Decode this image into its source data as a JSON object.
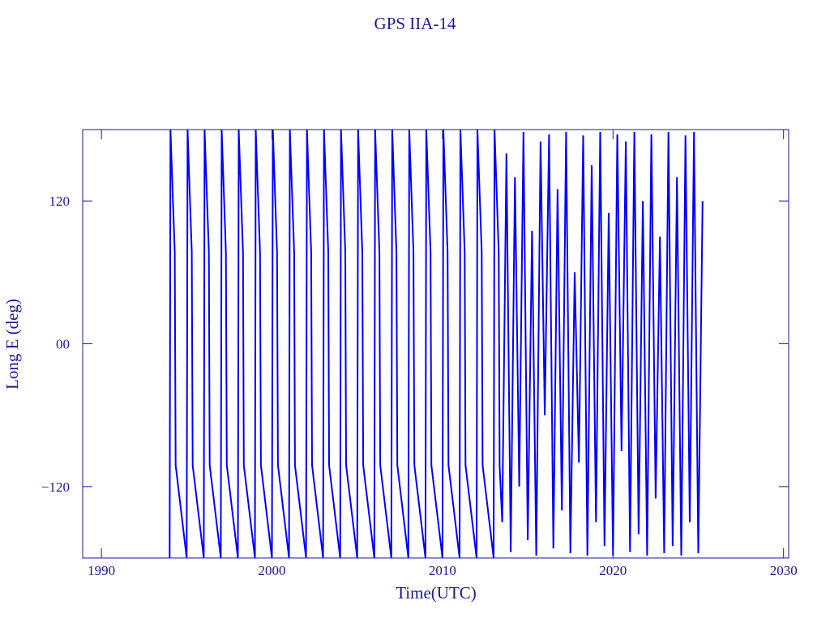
{
  "chart_data": {
    "type": "line",
    "title": "GPS IIA-14",
    "x_label": "Time(UTC)",
    "y_label": "Long E (deg)",
    "xlim": [
      1988.9,
      2030.3
    ],
    "ylim": [
      -180,
      180
    ],
    "xticks": [
      1990,
      2000,
      2010,
      2020,
      2030
    ],
    "yticks": [
      {
        "value": -120,
        "label": "−120"
      },
      {
        "value": 0,
        "label": "00"
      },
      120
    ],
    "series": [
      {
        "color": "#0000ff",
        "x": [
          1994,
          1994.05,
          1994.3,
          1994.35,
          1995,
          1995.05,
          1995.3,
          1995.35,
          1996,
          1996.05,
          1996.3,
          1996.35,
          1997,
          1997.05,
          1997.3,
          1997.35,
          1998,
          1998.05,
          1998.3,
          1998.35,
          1999,
          1999.05,
          1999.3,
          1999.35,
          2000,
          2000.05,
          2000.3,
          2000.35,
          2001,
          2001.05,
          2001.3,
          2001.35,
          2002,
          2002.05,
          2002.3,
          2002.35,
          2003,
          2003.05,
          2003.3,
          2003.35,
          2004,
          2004.05,
          2004.3,
          2004.35,
          2005,
          2005.05,
          2005.3,
          2005.35,
          2006,
          2006.05,
          2006.3,
          2006.35,
          2007,
          2007.05,
          2007.3,
          2007.35,
          2008,
          2008.05,
          2008.3,
          2008.35,
          2009,
          2009.05,
          2009.3,
          2009.35,
          2010,
          2010.05,
          2010.3,
          2010.35,
          2011,
          2011.05,
          2011.3,
          2011.35,
          2012,
          2012.05,
          2012.3,
          2012.35,
          2013,
          2013.05,
          2013.3,
          2013.35,
          2013.5,
          2013.75,
          2014,
          2014.25,
          2014.5,
          2014.75,
          2015,
          2015.25,
          2015.5,
          2015.75,
          2016,
          2016.25,
          2016.5,
          2016.75,
          2017,
          2017.25,
          2017.5,
          2017.75,
          2018,
          2018.25,
          2018.5,
          2018.75,
          2019,
          2019.25,
          2019.5,
          2019.75,
          2020,
          2020.25,
          2020.5,
          2020.75,
          2021,
          2021.25,
          2021.5,
          2021.75,
          2022,
          2022.25,
          2022.5,
          2022.75,
          2023,
          2023.25,
          2023.5,
          2023.75,
          2024,
          2024.25,
          2024.5,
          2024.75,
          2025,
          2025.25
        ],
        "values": [
          -180,
          180,
          77,
          -102,
          -180,
          180,
          77,
          -102,
          -180,
          180,
          77,
          -102,
          -180,
          180,
          77,
          -102,
          -180,
          180,
          77,
          -102,
          -180,
          180,
          77,
          -102,
          -180,
          180,
          77,
          -102,
          -180,
          180,
          77,
          -102,
          -180,
          180,
          77,
          -102,
          -180,
          180,
          77,
          -102,
          -180,
          180,
          77,
          -102,
          -180,
          180,
          77,
          -102,
          -180,
          180,
          77,
          -102,
          -180,
          180,
          77,
          -102,
          -180,
          180,
          77,
          -102,
          -180,
          180,
          77,
          -102,
          -180,
          180,
          77,
          -102,
          -180,
          180,
          77,
          -102,
          -180,
          180,
          77,
          -102,
          -180,
          180,
          77,
          -102,
          -150,
          160,
          -175,
          140,
          -120,
          178,
          -165,
          95,
          -178,
          170,
          -60,
          176,
          -172,
          130,
          -140,
          178,
          -176,
          60,
          -100,
          175,
          -178,
          150,
          -150,
          178,
          -170,
          110,
          -178,
          176,
          -90,
          170,
          -175,
          178,
          -160,
          120,
          -178,
          176,
          -130,
          90,
          -176,
          178,
          -170,
          140,
          -178,
          175,
          -150,
          178,
          -176,
          120
        ]
      }
    ]
  }
}
